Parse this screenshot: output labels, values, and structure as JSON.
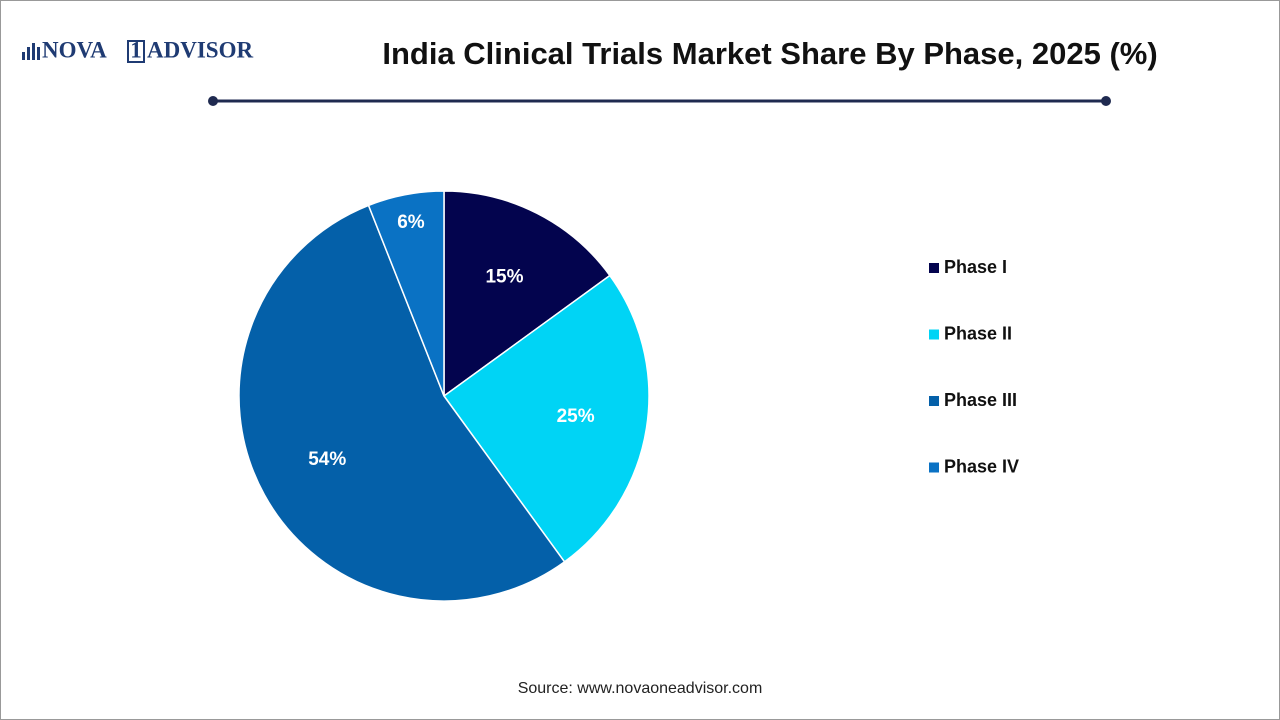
{
  "logo": [
    "NOVA",
    "1",
    "ADVISOR"
  ],
  "chart_data": {
    "type": "pie",
    "title": "India Clinical Trials Market Share By Phase, 2025 (%)",
    "categories": [
      "Phase I",
      "Phase II",
      "Phase III",
      "Phase IV"
    ],
    "values": [
      15,
      25,
      54,
      6
    ],
    "value_labels": [
      "15%",
      "25%",
      "54%",
      "6%"
    ],
    "colors": [
      "#03044e",
      "#00d4f5",
      "#0460a9",
      "#0a72c4"
    ],
    "legend": "right",
    "source": "Source: www.novaoneadvisor.com"
  }
}
